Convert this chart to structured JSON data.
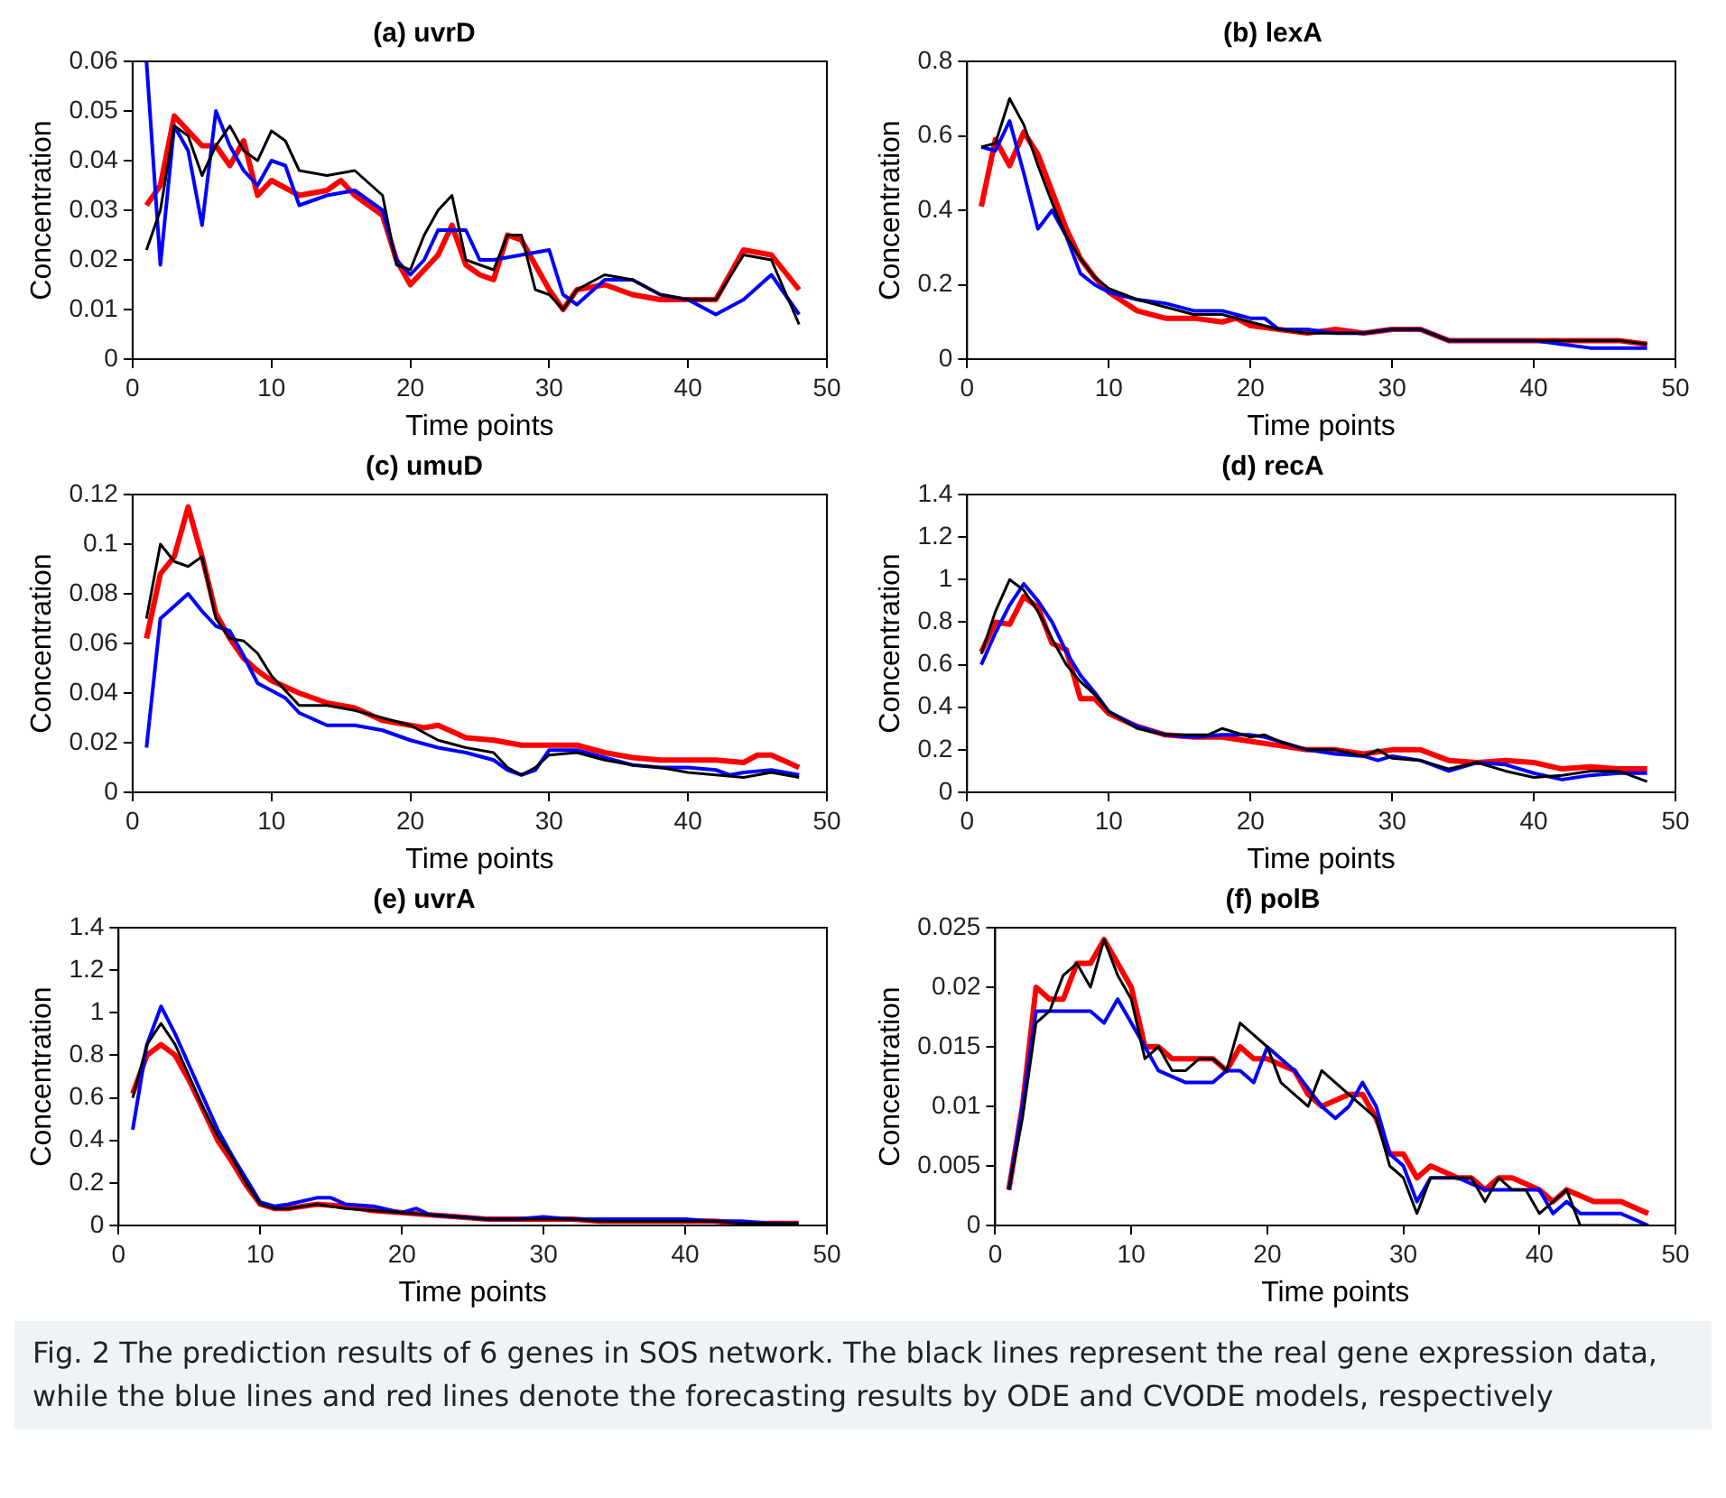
{
  "chart_data": [
    {
      "type": "line",
      "title": "(a) uvrD",
      "xlabel": "Time points",
      "ylabel": "Concentration",
      "xlim": [
        0,
        50
      ],
      "xticks": [
        0,
        10,
        20,
        30,
        40,
        50
      ],
      "ylim": [
        0,
        0.06
      ],
      "yticks": [
        0,
        0.01,
        0.02,
        0.03,
        0.04,
        0.05,
        0.06
      ],
      "marker": "none",
      "line_style": "solid",
      "series": [
        {
          "color": "#000000",
          "x": [
            1,
            2,
            3,
            4,
            5,
            6,
            7,
            8,
            9,
            10,
            11,
            12,
            14,
            16,
            18,
            19,
            20,
            21,
            22,
            23,
            24,
            26,
            27,
            28,
            29,
            30,
            31,
            32,
            34,
            36,
            38,
            40,
            42,
            44,
            46,
            48
          ],
          "values": [
            0.022,
            0.03,
            0.047,
            0.045,
            0.037,
            0.043,
            0.047,
            0.042,
            0.04,
            0.046,
            0.044,
            0.038,
            0.037,
            0.038,
            0.033,
            0.019,
            0.018,
            0.025,
            0.03,
            0.033,
            0.02,
            0.018,
            0.025,
            0.025,
            0.014,
            0.013,
            0.01,
            0.014,
            0.017,
            0.016,
            0.013,
            0.012,
            0.012,
            0.021,
            0.02,
            0.007
          ]
        },
        {
          "color": "#0000ff",
          "x": [
            1,
            2,
            3,
            4,
            5,
            6,
            7,
            8,
            9,
            10,
            11,
            12,
            14,
            16,
            18,
            19,
            20,
            21,
            22,
            24,
            25,
            26,
            28,
            30,
            31,
            32,
            34,
            36,
            38,
            40,
            42,
            44,
            46,
            48
          ],
          "values": [
            0.06,
            0.019,
            0.047,
            0.042,
            0.027,
            0.05,
            0.043,
            0.038,
            0.035,
            0.04,
            0.039,
            0.031,
            0.033,
            0.034,
            0.03,
            0.02,
            0.017,
            0.02,
            0.026,
            0.026,
            0.02,
            0.02,
            0.021,
            0.022,
            0.013,
            0.011,
            0.016,
            0.016,
            0.013,
            0.012,
            0.009,
            0.012,
            0.017,
            0.009
          ]
        },
        {
          "color": "#ff0000",
          "x": [
            1,
            2,
            3,
            4,
            5,
            6,
            7,
            8,
            9,
            10,
            12,
            14,
            15,
            16,
            18,
            19,
            20,
            22,
            23,
            24,
            25,
            26,
            27,
            28,
            30,
            31,
            32,
            34,
            36,
            38,
            40,
            42,
            44,
            46,
            48
          ],
          "values": [
            0.031,
            0.035,
            0.049,
            0.046,
            0.043,
            0.043,
            0.039,
            0.044,
            0.033,
            0.036,
            0.033,
            0.034,
            0.036,
            0.033,
            0.029,
            0.02,
            0.015,
            0.021,
            0.027,
            0.019,
            0.017,
            0.016,
            0.025,
            0.024,
            0.014,
            0.01,
            0.014,
            0.015,
            0.013,
            0.012,
            0.012,
            0.012,
            0.022,
            0.021,
            0.014
          ]
        }
      ]
    },
    {
      "type": "line",
      "title": "(b) lexA",
      "xlabel": "Time points",
      "ylabel": "Concentration",
      "xlim": [
        0,
        50
      ],
      "xticks": [
        0,
        10,
        20,
        30,
        40,
        50
      ],
      "ylim": [
        0,
        0.8
      ],
      "yticks": [
        0,
        0.2,
        0.4,
        0.6,
        0.8
      ],
      "marker": "none",
      "line_style": "solid",
      "series": [
        {
          "color": "#000000",
          "x": [
            1,
            2,
            3,
            4,
            5,
            6,
            7,
            8,
            9,
            10,
            12,
            14,
            16,
            18,
            20,
            22,
            24,
            26,
            28,
            30,
            32,
            34,
            36,
            38,
            40,
            42,
            44,
            46,
            48
          ],
          "values": [
            0.57,
            0.58,
            0.7,
            0.63,
            0.52,
            0.42,
            0.33,
            0.27,
            0.22,
            0.19,
            0.16,
            0.14,
            0.12,
            0.12,
            0.1,
            0.08,
            0.07,
            0.07,
            0.07,
            0.08,
            0.08,
            0.05,
            0.05,
            0.05,
            0.05,
            0.05,
            0.05,
            0.05,
            0.04
          ]
        },
        {
          "color": "#0000ff",
          "x": [
            1,
            2,
            3,
            4,
            5,
            6,
            7,
            8,
            9,
            10,
            12,
            14,
            16,
            18,
            20,
            21,
            22,
            24,
            26,
            28,
            30,
            32,
            34,
            36,
            38,
            40,
            42,
            44,
            46,
            48
          ],
          "values": [
            0.57,
            0.56,
            0.64,
            0.5,
            0.35,
            0.4,
            0.33,
            0.23,
            0.2,
            0.18,
            0.16,
            0.15,
            0.13,
            0.13,
            0.11,
            0.11,
            0.08,
            0.08,
            0.07,
            0.07,
            0.08,
            0.08,
            0.05,
            0.05,
            0.05,
            0.05,
            0.04,
            0.03,
            0.03,
            0.03
          ]
        },
        {
          "color": "#ff0000",
          "x": [
            1,
            2,
            3,
            4,
            5,
            6,
            7,
            8,
            9,
            10,
            12,
            14,
            16,
            18,
            19,
            20,
            22,
            24,
            26,
            28,
            30,
            32,
            34,
            36,
            38,
            40,
            42,
            44,
            46,
            48
          ],
          "values": [
            0.41,
            0.59,
            0.52,
            0.61,
            0.55,
            0.45,
            0.35,
            0.27,
            0.22,
            0.18,
            0.13,
            0.11,
            0.11,
            0.1,
            0.11,
            0.09,
            0.08,
            0.07,
            0.08,
            0.07,
            0.08,
            0.08,
            0.05,
            0.05,
            0.05,
            0.05,
            0.05,
            0.05,
            0.05,
            0.04
          ]
        }
      ]
    },
    {
      "type": "line",
      "title": "(c) umuD",
      "xlabel": "Time points",
      "ylabel": "Concentration",
      "xlim": [
        0,
        50
      ],
      "xticks": [
        0,
        10,
        20,
        30,
        40,
        50
      ],
      "ylim": [
        0,
        0.12
      ],
      "yticks": [
        0,
        0.02,
        0.04,
        0.06,
        0.08,
        0.1,
        0.12
      ],
      "marker": "none",
      "line_style": "solid",
      "series": [
        {
          "color": "#000000",
          "x": [
            1,
            2,
            3,
            4,
            5,
            6,
            7,
            8,
            9,
            10,
            12,
            14,
            16,
            18,
            20,
            22,
            24,
            26,
            27,
            28,
            29,
            30,
            32,
            34,
            36,
            38,
            40,
            42,
            44,
            46,
            48
          ],
          "values": [
            0.07,
            0.1,
            0.093,
            0.091,
            0.095,
            0.07,
            0.062,
            0.061,
            0.056,
            0.047,
            0.035,
            0.035,
            0.033,
            0.03,
            0.027,
            0.021,
            0.018,
            0.016,
            0.01,
            0.007,
            0.01,
            0.015,
            0.016,
            0.013,
            0.011,
            0.01,
            0.008,
            0.007,
            0.006,
            0.008,
            0.006
          ]
        },
        {
          "color": "#0000ff",
          "x": [
            1,
            2,
            3,
            4,
            5,
            6,
            7,
            8,
            9,
            10,
            11,
            12,
            14,
            16,
            18,
            20,
            22,
            24,
            26,
            27,
            28,
            29,
            30,
            32,
            34,
            36,
            38,
            40,
            42,
            43,
            44,
            46,
            48
          ],
          "values": [
            0.018,
            0.07,
            0.075,
            0.08,
            0.073,
            0.067,
            0.065,
            0.055,
            0.044,
            0.041,
            0.038,
            0.032,
            0.027,
            0.027,
            0.025,
            0.021,
            0.018,
            0.016,
            0.013,
            0.009,
            0.007,
            0.009,
            0.017,
            0.017,
            0.014,
            0.011,
            0.01,
            0.01,
            0.009,
            0.007,
            0.008,
            0.009,
            0.007
          ]
        },
        {
          "color": "#ff0000",
          "x": [
            1,
            2,
            3,
            4,
            5,
            6,
            7,
            8,
            9,
            10,
            12,
            14,
            16,
            18,
            20,
            21,
            22,
            24,
            26,
            28,
            30,
            32,
            34,
            36,
            38,
            40,
            42,
            44,
            45,
            46,
            48
          ],
          "values": [
            0.062,
            0.088,
            0.095,
            0.115,
            0.095,
            0.072,
            0.062,
            0.054,
            0.049,
            0.045,
            0.04,
            0.036,
            0.034,
            0.029,
            0.027,
            0.026,
            0.027,
            0.022,
            0.021,
            0.019,
            0.019,
            0.019,
            0.016,
            0.014,
            0.013,
            0.013,
            0.013,
            0.012,
            0.015,
            0.015,
            0.01
          ]
        }
      ]
    },
    {
      "type": "line",
      "title": "(d) recA",
      "xlabel": "Time points",
      "ylabel": "Concentration",
      "xlim": [
        0,
        50
      ],
      "xticks": [
        0,
        10,
        20,
        30,
        40,
        50
      ],
      "ylim": [
        0,
        1.4
      ],
      "yticks": [
        0,
        0.2,
        0.4,
        0.6,
        0.8,
        1,
        1.2,
        1.4
      ],
      "marker": "none",
      "line_style": "solid",
      "series": [
        {
          "color": "#000000",
          "x": [
            1,
            2,
            3,
            4,
            5,
            6,
            7,
            8,
            9,
            10,
            12,
            14,
            16,
            17,
            18,
            19,
            20,
            21,
            22,
            24,
            26,
            28,
            29,
            30,
            32,
            34,
            36,
            38,
            40,
            42,
            44,
            46,
            48
          ],
          "values": [
            0.65,
            0.85,
            1.0,
            0.95,
            0.85,
            0.72,
            0.6,
            0.52,
            0.46,
            0.38,
            0.3,
            0.27,
            0.27,
            0.27,
            0.3,
            0.28,
            0.26,
            0.27,
            0.24,
            0.2,
            0.2,
            0.17,
            0.2,
            0.16,
            0.15,
            0.11,
            0.14,
            0.1,
            0.07,
            0.08,
            0.1,
            0.1,
            0.05
          ]
        },
        {
          "color": "#0000ff",
          "x": [
            1,
            2,
            3,
            4,
            5,
            6,
            7,
            8,
            9,
            10,
            12,
            14,
            16,
            18,
            20,
            21,
            22,
            24,
            26,
            28,
            29,
            30,
            32,
            34,
            36,
            38,
            40,
            42,
            44,
            46,
            48
          ],
          "values": [
            0.6,
            0.75,
            0.88,
            0.98,
            0.9,
            0.8,
            0.66,
            0.55,
            0.47,
            0.38,
            0.31,
            0.27,
            0.26,
            0.27,
            0.27,
            0.26,
            0.24,
            0.2,
            0.18,
            0.17,
            0.15,
            0.17,
            0.15,
            0.1,
            0.14,
            0.13,
            0.09,
            0.06,
            0.08,
            0.09,
            0.09
          ]
        },
        {
          "color": "#ff0000",
          "x": [
            1,
            2,
            3,
            4,
            5,
            6,
            7,
            8,
            9,
            10,
            12,
            14,
            16,
            18,
            20,
            22,
            24,
            26,
            28,
            30,
            32,
            34,
            36,
            38,
            40,
            42,
            44,
            46,
            48
          ],
          "values": [
            0.66,
            0.8,
            0.79,
            0.92,
            0.87,
            0.7,
            0.67,
            0.44,
            0.44,
            0.37,
            0.31,
            0.27,
            0.26,
            0.26,
            0.24,
            0.22,
            0.2,
            0.2,
            0.18,
            0.2,
            0.2,
            0.15,
            0.14,
            0.15,
            0.14,
            0.11,
            0.12,
            0.11,
            0.11
          ]
        }
      ]
    },
    {
      "type": "line",
      "title": "(e) uvrA",
      "xlabel": "Time points",
      "ylabel": "Concentration",
      "xlim": [
        0,
        50
      ],
      "xticks": [
        0,
        10,
        20,
        30,
        40,
        50
      ],
      "ylim": [
        0,
        1.4
      ],
      "yticks": [
        0,
        0.2,
        0.4,
        0.6,
        0.8,
        1,
        1.2,
        1.4
      ],
      "marker": "none",
      "line_style": "solid",
      "series": [
        {
          "color": "#000000",
          "x": [
            1,
            2,
            3,
            4,
            5,
            6,
            7,
            8,
            9,
            10,
            11,
            12,
            14,
            16,
            18,
            20,
            22,
            24,
            26,
            28,
            30,
            32,
            34,
            36,
            38,
            40,
            42,
            44,
            46,
            48
          ],
          "values": [
            0.6,
            0.85,
            0.95,
            0.85,
            0.7,
            0.55,
            0.42,
            0.32,
            0.2,
            0.1,
            0.08,
            0.08,
            0.1,
            0.08,
            0.07,
            0.06,
            0.05,
            0.04,
            0.03,
            0.03,
            0.03,
            0.03,
            0.02,
            0.02,
            0.02,
            0.02,
            0.02,
            0.01,
            0.01,
            0.01
          ]
        },
        {
          "color": "#0000ff",
          "x": [
            1,
            2,
            3,
            4,
            5,
            6,
            7,
            8,
            9,
            10,
            11,
            12,
            14,
            15,
            16,
            18,
            20,
            21,
            22,
            24,
            26,
            28,
            30,
            32,
            34,
            36,
            38,
            40,
            42,
            44,
            46,
            48
          ],
          "values": [
            0.45,
            0.85,
            1.03,
            0.9,
            0.75,
            0.6,
            0.45,
            0.33,
            0.22,
            0.11,
            0.09,
            0.1,
            0.13,
            0.13,
            0.1,
            0.09,
            0.06,
            0.08,
            0.05,
            0.04,
            0.03,
            0.03,
            0.04,
            0.03,
            0.03,
            0.03,
            0.03,
            0.03,
            0.02,
            0.02,
            0.01,
            0.01
          ]
        },
        {
          "color": "#ff0000",
          "x": [
            1,
            2,
            3,
            4,
            5,
            6,
            7,
            8,
            9,
            10,
            11,
            12,
            14,
            16,
            18,
            20,
            22,
            24,
            26,
            28,
            30,
            32,
            34,
            36,
            38,
            40,
            42,
            44,
            46,
            48
          ],
          "values": [
            0.62,
            0.8,
            0.85,
            0.8,
            0.68,
            0.54,
            0.4,
            0.3,
            0.19,
            0.1,
            0.08,
            0.08,
            0.1,
            0.09,
            0.07,
            0.06,
            0.05,
            0.04,
            0.03,
            0.03,
            0.03,
            0.03,
            0.02,
            0.02,
            0.02,
            0.02,
            0.02,
            0.01,
            0.01,
            0.01
          ]
        }
      ]
    },
    {
      "type": "line",
      "title": "(f) polB",
      "xlabel": "Time points",
      "ylabel": "Concentration",
      "xlim": [
        0,
        50
      ],
      "xticks": [
        0,
        10,
        20,
        30,
        40,
        50
      ],
      "ylim": [
        0,
        0.025
      ],
      "yticks": [
        0,
        0.005,
        0.01,
        0.015,
        0.02,
        0.025
      ],
      "marker": "none",
      "line_style": "solid",
      "annotations": [
        "Fig. 2  The prediction results of 6 genes in SOS network. The black lines represent the real gene expression data, while the blue lines and red lines denote the forecasting results by ODE and CVODE models, respectively"
      ],
      "series": [
        {
          "color": "#000000",
          "x": [
            1,
            2,
            3,
            4,
            5,
            6,
            7,
            8,
            9,
            10,
            11,
            12,
            13,
            14,
            15,
            16,
            17,
            18,
            19,
            20,
            21,
            22,
            23,
            24,
            25,
            26,
            28,
            29,
            30,
            31,
            32,
            33,
            34,
            35,
            36,
            37,
            38,
            39,
            40,
            41,
            42,
            43,
            44,
            46,
            48
          ],
          "values": [
            0.003,
            0.009,
            0.017,
            0.018,
            0.021,
            0.022,
            0.02,
            0.024,
            0.021,
            0.019,
            0.014,
            0.015,
            0.013,
            0.013,
            0.014,
            0.014,
            0.013,
            0.017,
            0.016,
            0.015,
            0.012,
            0.011,
            0.01,
            0.013,
            0.012,
            0.011,
            0.009,
            0.005,
            0.004,
            0.001,
            0.004,
            0.004,
            0.004,
            0.004,
            0.002,
            0.004,
            0.003,
            0.003,
            0.001,
            0.002,
            0.003,
            0,
            0,
            0,
            0
          ]
        },
        {
          "color": "#0000ff",
          "x": [
            1,
            2,
            3,
            4,
            5,
            6,
            7,
            8,
            9,
            10,
            11,
            12,
            14,
            16,
            17,
            18,
            19,
            20,
            22,
            24,
            25,
            26,
            27,
            28,
            29,
            30,
            31,
            32,
            34,
            36,
            38,
            40,
            41,
            42,
            43,
            44,
            46,
            48
          ],
          "values": [
            0.003,
            0.01,
            0.018,
            0.018,
            0.018,
            0.018,
            0.018,
            0.017,
            0.019,
            0.017,
            0.015,
            0.013,
            0.012,
            0.012,
            0.013,
            0.013,
            0.012,
            0.015,
            0.013,
            0.01,
            0.009,
            0.01,
            0.012,
            0.01,
            0.006,
            0.005,
            0.002,
            0.004,
            0.004,
            0.003,
            0.003,
            0.003,
            0.001,
            0.002,
            0.001,
            0.001,
            0.001,
            0
          ]
        },
        {
          "color": "#ff0000",
          "x": [
            1,
            2,
            3,
            4,
            5,
            6,
            7,
            8,
            9,
            10,
            11,
            12,
            13,
            14,
            15,
            16,
            17,
            18,
            19,
            20,
            22,
            23,
            24,
            26,
            27,
            28,
            29,
            30,
            31,
            32,
            34,
            35,
            36,
            37,
            38,
            40,
            41,
            42,
            44,
            46,
            48
          ],
          "values": [
            0.003,
            0.01,
            0.02,
            0.019,
            0.019,
            0.022,
            0.022,
            0.024,
            0.022,
            0.02,
            0.015,
            0.015,
            0.014,
            0.014,
            0.014,
            0.014,
            0.013,
            0.015,
            0.014,
            0.014,
            0.013,
            0.011,
            0.01,
            0.011,
            0.011,
            0.009,
            0.006,
            0.006,
            0.004,
            0.005,
            0.004,
            0.004,
            0.003,
            0.004,
            0.004,
            0.003,
            0.002,
            0.003,
            0.002,
            0.002,
            0.001
          ]
        }
      ]
    }
  ]
}
